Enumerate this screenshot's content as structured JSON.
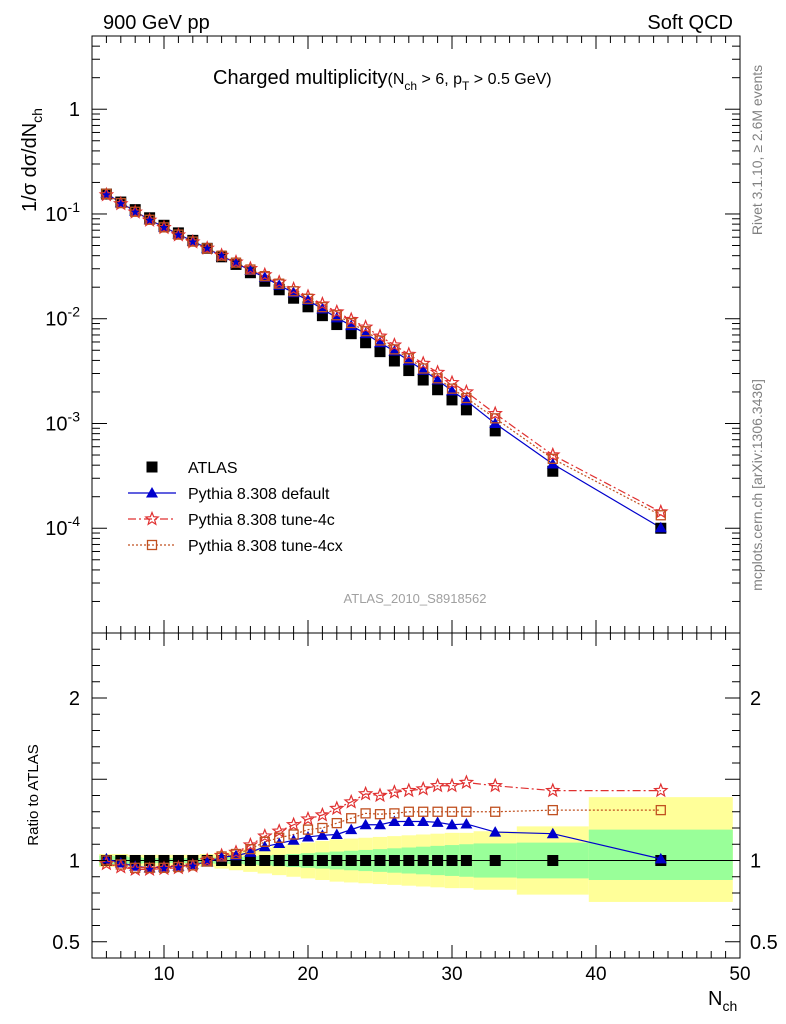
{
  "header": {
    "left": "900 GeV pp",
    "right": "Soft QCD"
  },
  "side": {
    "rivet": "Rivet 3.1.10, ≥ 2.6M events",
    "mcplots": "mcplots.cern.ch [arXiv:1306.3436]"
  },
  "chart_data": [
    {
      "type": "scatter",
      "panel": "main",
      "title": "Charged multiplicity",
      "title_cut": "(N_ch > 6, p_T > 0.5 GeV)",
      "ylabel": "1/σ dσ/dN_ch",
      "xlabel": "N_ch",
      "analysis_label": "ATLAS_2010_S8918562",
      "yscale": "log",
      "xlim": [
        5,
        50
      ],
      "ylim": [
        1e-05,
        5
      ],
      "ytick_labels": [
        "1",
        "10^-1",
        "10^-2",
        "10^-3",
        "10^-4"
      ],
      "legend_position": "lower-left",
      "x": [
        6,
        7,
        8,
        9,
        10,
        11,
        12,
        13,
        14,
        15,
        16,
        17,
        18,
        19,
        20,
        21,
        22,
        23,
        24,
        25,
        26,
        27,
        28,
        29,
        30,
        31,
        33,
        37,
        44.5
      ],
      "series": [
        {
          "name": "ATLAS",
          "marker": "square",
          "color": "#000000",
          "values": [
            0.155,
            0.13,
            0.11,
            0.092,
            0.078,
            0.066,
            0.056,
            0.047,
            0.039,
            0.033,
            0.0275,
            0.0228,
            0.0189,
            0.0157,
            0.013,
            0.0107,
            0.0088,
            0.0072,
            0.0059,
            0.00485,
            0.00395,
            0.0032,
            0.0026,
            0.0021,
            0.00168,
            0.00135,
            0.00085,
            0.00035,
            0.0001
          ]
        },
        {
          "name": "Pythia 8.308 default",
          "marker": "triangle",
          "color": "#0000cc",
          "line": "solid",
          "values": [
            0.157,
            0.128,
            0.106,
            0.088,
            0.075,
            0.064,
            0.055,
            0.047,
            0.0398,
            0.034,
            0.0289,
            0.0248,
            0.0209,
            0.0177,
            0.015,
            0.0124,
            0.0102,
            0.0086,
            0.0072,
            0.0059,
            0.0049,
            0.00398,
            0.00322,
            0.0026,
            0.00205,
            0.00165,
            0.001,
            0.00041,
            0.000101
          ]
        },
        {
          "name": "Pythia 8.308 tune-4c",
          "marker": "star",
          "color": "#e03030",
          "line": "dashdot",
          "values": [
            0.152,
            0.125,
            0.104,
            0.087,
            0.074,
            0.063,
            0.054,
            0.047,
            0.0402,
            0.0347,
            0.0301,
            0.0262,
            0.0223,
            0.0192,
            0.0163,
            0.0138,
            0.0116,
            0.0098,
            0.0083,
            0.0068,
            0.0056,
            0.00456,
            0.00374,
            0.00307,
            0.00245,
            0.002,
            0.00124,
            0.0005,
            0.000143
          ]
        },
        {
          "name": "Pythia 8.308 tune-4cx",
          "marker": "open-square",
          "color": "#c05020",
          "line": "dotted",
          "values": [
            0.156,
            0.127,
            0.105,
            0.088,
            0.0745,
            0.0635,
            0.0545,
            0.047,
            0.04,
            0.0343,
            0.0295,
            0.0255,
            0.0216,
            0.0183,
            0.0155,
            0.0129,
            0.0108,
            0.0091,
            0.0076,
            0.0062,
            0.0051,
            0.0042,
            0.00335,
            0.0027,
            0.00215,
            0.00175,
            0.00112,
            0.00046,
            0.000133
          ]
        }
      ]
    },
    {
      "type": "line",
      "panel": "ratio",
      "ylabel": "Ratio to ATLAS",
      "xlabel": "N_ch",
      "xlim": [
        5,
        50
      ],
      "ylim": [
        0.4,
        2.4
      ],
      "ytick_labels": [
        "0.5",
        "1",
        "2"
      ],
      "xtick_labels": [
        "10",
        "20",
        "30",
        "40",
        "50"
      ],
      "x": [
        6,
        7,
        8,
        9,
        10,
        11,
        12,
        13,
        14,
        15,
        16,
        17,
        18,
        19,
        20,
        21,
        22,
        23,
        24,
        25,
        26,
        27,
        28,
        29,
        30,
        31,
        33,
        37,
        44.5
      ],
      "band_edges": [
        5.5,
        6.5,
        7.5,
        8.5,
        9.5,
        10.5,
        11.5,
        12.5,
        13.5,
        14.5,
        15.5,
        16.5,
        17.5,
        18.5,
        19.5,
        20.5,
        21.5,
        22.5,
        23.5,
        24.5,
        25.5,
        26.5,
        27.5,
        28.5,
        29.5,
        30.5,
        31.5,
        34.5,
        39.5,
        49.5
      ],
      "stat_band": [
        {
          "lo": 0.97,
          "hi": 1.03
        },
        {
          "lo": 0.975,
          "hi": 1.025
        },
        {
          "lo": 0.98,
          "hi": 1.02
        },
        {
          "lo": 0.985,
          "hi": 1.015
        },
        {
          "lo": 0.985,
          "hi": 1.015
        },
        {
          "lo": 0.985,
          "hi": 1.015
        },
        {
          "lo": 0.985,
          "hi": 1.015
        },
        {
          "lo": 0.982,
          "hi": 1.018
        },
        {
          "lo": 0.98,
          "hi": 1.02
        },
        {
          "lo": 0.978,
          "hi": 1.022
        },
        {
          "lo": 0.975,
          "hi": 1.025
        },
        {
          "lo": 0.97,
          "hi": 1.03
        },
        {
          "lo": 0.965,
          "hi": 1.035
        },
        {
          "lo": 0.96,
          "hi": 1.04
        },
        {
          "lo": 0.955,
          "hi": 1.045
        },
        {
          "lo": 0.95,
          "hi": 1.05
        },
        {
          "lo": 0.945,
          "hi": 1.055
        },
        {
          "lo": 0.94,
          "hi": 1.06
        },
        {
          "lo": 0.935,
          "hi": 1.065
        },
        {
          "lo": 0.93,
          "hi": 1.07
        },
        {
          "lo": 0.925,
          "hi": 1.075
        },
        {
          "lo": 0.92,
          "hi": 1.08
        },
        {
          "lo": 0.915,
          "hi": 1.085
        },
        {
          "lo": 0.91,
          "hi": 1.09
        },
        {
          "lo": 0.905,
          "hi": 1.095
        },
        {
          "lo": 0.9,
          "hi": 1.1
        },
        {
          "lo": 0.895,
          "hi": 1.105
        },
        {
          "lo": 0.89,
          "hi": 1.11
        },
        {
          "lo": 0.88,
          "hi": 1.19
        }
      ],
      "total_band": [
        {
          "lo": 0.96,
          "hi": 1.04
        },
        {
          "lo": 0.96,
          "hi": 1.04
        },
        {
          "lo": 0.965,
          "hi": 1.035
        },
        {
          "lo": 0.965,
          "hi": 1.035
        },
        {
          "lo": 0.965,
          "hi": 1.035
        },
        {
          "lo": 0.965,
          "hi": 1.035
        },
        {
          "lo": 0.965,
          "hi": 1.035
        },
        {
          "lo": 0.96,
          "hi": 1.04
        },
        {
          "lo": 0.95,
          "hi": 1.05
        },
        {
          "lo": 0.94,
          "hi": 1.06
        },
        {
          "lo": 0.93,
          "hi": 1.07
        },
        {
          "lo": 0.92,
          "hi": 1.08
        },
        {
          "lo": 0.91,
          "hi": 1.09
        },
        {
          "lo": 0.9,
          "hi": 1.1
        },
        {
          "lo": 0.89,
          "hi": 1.11
        },
        {
          "lo": 0.88,
          "hi": 1.12
        },
        {
          "lo": 0.87,
          "hi": 1.13
        },
        {
          "lo": 0.865,
          "hi": 1.135
        },
        {
          "lo": 0.86,
          "hi": 1.14
        },
        {
          "lo": 0.855,
          "hi": 1.145
        },
        {
          "lo": 0.85,
          "hi": 1.15
        },
        {
          "lo": 0.845,
          "hi": 1.155
        },
        {
          "lo": 0.84,
          "hi": 1.16
        },
        {
          "lo": 0.835,
          "hi": 1.165
        },
        {
          "lo": 0.83,
          "hi": 1.17
        },
        {
          "lo": 0.83,
          "hi": 1.17
        },
        {
          "lo": 0.82,
          "hi": 1.18
        },
        {
          "lo": 0.79,
          "hi": 1.21
        },
        {
          "lo": 0.745,
          "hi": 1.39
        }
      ],
      "series": [
        {
          "name": "Pythia 8.308 default",
          "marker": "triangle",
          "color": "#0000cc",
          "line": "solid",
          "values": [
            1.01,
            0.985,
            0.965,
            0.955,
            0.96,
            0.965,
            0.975,
            0.99,
            1.02,
            1.03,
            1.05,
            1.085,
            1.105,
            1.125,
            1.145,
            1.155,
            1.16,
            1.19,
            1.22,
            1.22,
            1.24,
            1.24,
            1.24,
            1.235,
            1.22,
            1.225,
            1.175,
            1.165,
            1.01
          ]
        },
        {
          "name": "Pythia 8.308 tune-4c",
          "marker": "star",
          "color": "#e03030",
          "line": "dashdot",
          "values": [
            0.98,
            0.96,
            0.945,
            0.945,
            0.95,
            0.955,
            0.965,
            1.0,
            1.03,
            1.05,
            1.095,
            1.15,
            1.18,
            1.22,
            1.255,
            1.28,
            1.32,
            1.36,
            1.41,
            1.4,
            1.42,
            1.43,
            1.44,
            1.46,
            1.46,
            1.48,
            1.46,
            1.43,
            1.43
          ]
        },
        {
          "name": "Pythia 8.308 tune-4cx",
          "marker": "open-square",
          "color": "#c05020",
          "line": "dotted",
          "values": [
            1.0,
            0.975,
            0.955,
            0.955,
            0.955,
            0.96,
            0.97,
            0.995,
            1.025,
            1.04,
            1.07,
            1.115,
            1.14,
            1.16,
            1.19,
            1.2,
            1.23,
            1.26,
            1.29,
            1.285,
            1.29,
            1.3,
            1.3,
            1.3,
            1.3,
            1.3,
            1.3,
            1.31,
            1.31
          ]
        }
      ]
    }
  ]
}
